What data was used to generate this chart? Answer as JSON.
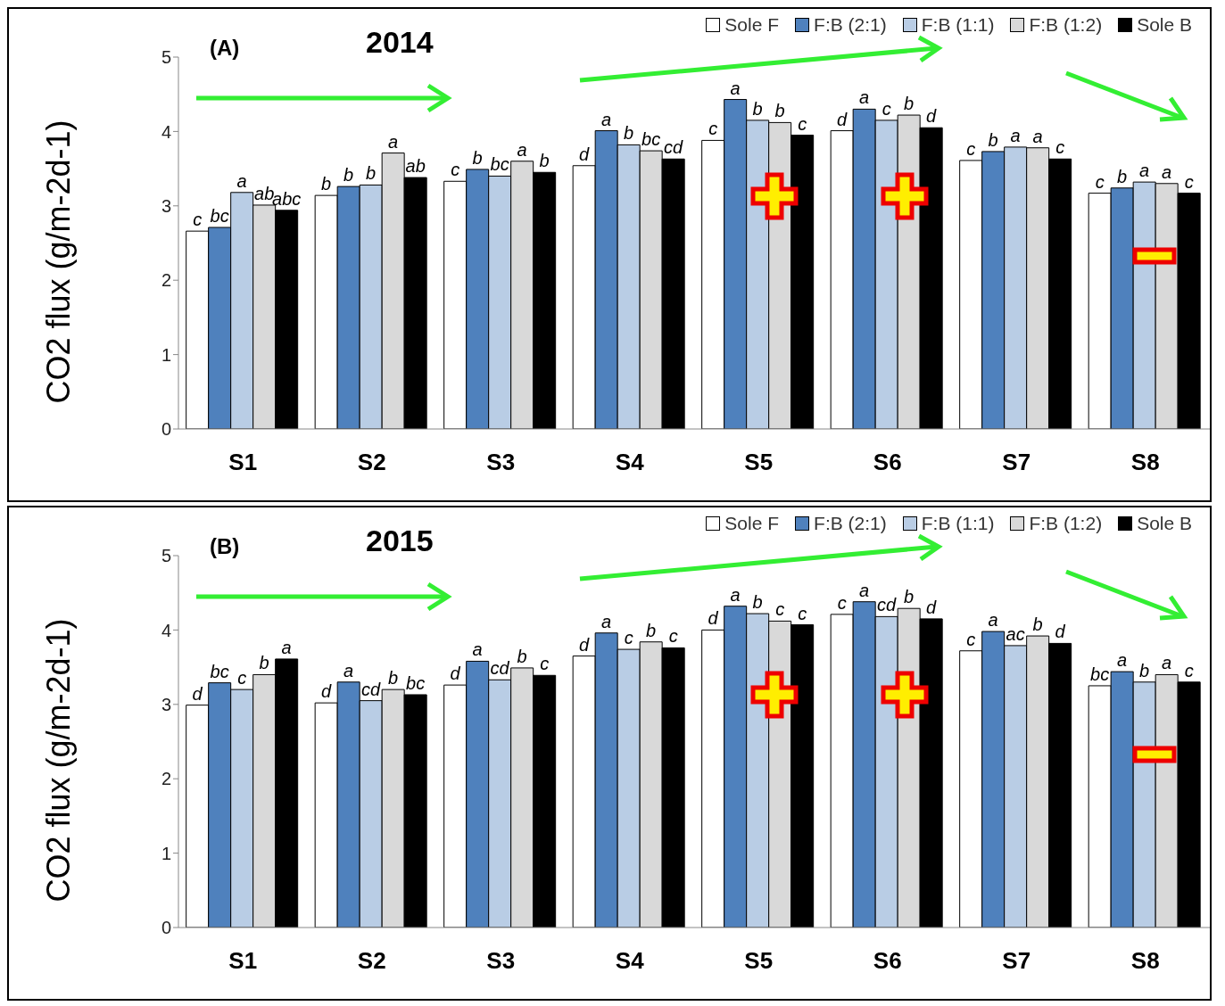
{
  "chart_data": [
    {
      "type": "bar",
      "title": "2014",
      "ylabel": "CO2 flux (g/m-2d-1)",
      "annotations": [
        "(A)"
      ],
      "categories": [
        "S1",
        "S2",
        "S3",
        "S4",
        "S5",
        "S6",
        "S7",
        "S8"
      ],
      "ylim": [
        0,
        5
      ],
      "yticks": [
        0,
        1,
        2,
        3,
        4,
        5
      ],
      "legend": "top right",
      "grid": false,
      "series": [
        {
          "name": "Sole F",
          "color": "#ffffff",
          "values": [
            2.66,
            3.14,
            3.33,
            3.54,
            3.88,
            4.01,
            3.61,
            3.17
          ],
          "value_labels": [
            "c",
            "b",
            "c",
            "d",
            "c",
            "d",
            "c",
            "c"
          ]
        },
        {
          "name": "F:B (2:1)",
          "color": "#4f81bd",
          "values": [
            2.71,
            3.26,
            3.49,
            4.01,
            4.43,
            4.3,
            3.73,
            3.24
          ],
          "value_labels": [
            "bc",
            "b",
            "b",
            "a",
            "a",
            "a",
            "b",
            "b"
          ]
        },
        {
          "name": "F:B (1:1)",
          "color": "#b9cde5",
          "values": [
            3.18,
            3.28,
            3.4,
            3.82,
            4.15,
            4.15,
            3.79,
            3.32
          ],
          "value_labels": [
            "a",
            "b",
            "bc",
            "b",
            "b",
            "c",
            "a",
            "a"
          ]
        },
        {
          "name": "F:B (1:2)",
          "color": "#d9d9d9",
          "values": [
            3.01,
            3.71,
            3.6,
            3.74,
            4.12,
            4.22,
            3.78,
            3.3
          ],
          "value_labels": [
            "ab",
            "a",
            "a",
            "bc",
            "b",
            "b",
            "a",
            "a"
          ]
        },
        {
          "name": "Sole B",
          "color": "#000000",
          "values": [
            2.94,
            3.38,
            3.45,
            3.63,
            3.95,
            4.05,
            3.63,
            3.17
          ],
          "value_labels": [
            "abc",
            "ab",
            "b",
            "cd",
            "c",
            "d",
            "c",
            "c"
          ]
        }
      ]
    },
    {
      "type": "bar",
      "title": "2015",
      "ylabel": "CO2 flux (g/m-2d-1)",
      "annotations": [
        "(B)"
      ],
      "categories": [
        "S1",
        "S2",
        "S3",
        "S4",
        "S5",
        "S6",
        "S7",
        "S8"
      ],
      "ylim": [
        0,
        5
      ],
      "yticks": [
        0,
        1,
        2,
        3,
        4,
        5
      ],
      "legend": "top right",
      "grid": false,
      "series": [
        {
          "name": "Sole F",
          "color": "#ffffff",
          "values": [
            2.99,
            3.02,
            3.26,
            3.65,
            4.0,
            4.21,
            3.72,
            3.25
          ],
          "value_labels": [
            "d",
            "d",
            "d",
            "d",
            "d",
            "c",
            "c",
            "bc"
          ]
        },
        {
          "name": "F:B (2:1)",
          "color": "#4f81bd",
          "values": [
            3.29,
            3.3,
            3.58,
            3.96,
            4.32,
            4.38,
            3.98,
            3.44
          ],
          "value_labels": [
            "bc",
            "a",
            "a",
            "a",
            "a",
            "a",
            "a",
            "a"
          ]
        },
        {
          "name": "F:B (1:1)",
          "color": "#b9cde5",
          "values": [
            3.2,
            3.05,
            3.33,
            3.74,
            4.22,
            4.18,
            3.79,
            3.3
          ],
          "value_labels": [
            "c",
            "cd",
            "cd",
            "c",
            "b",
            "cd",
            "ac",
            "b"
          ]
        },
        {
          "name": "F:B (1:2)",
          "color": "#d9d9d9",
          "values": [
            3.4,
            3.2,
            3.49,
            3.84,
            4.12,
            4.29,
            3.92,
            3.4
          ],
          "value_labels": [
            "b",
            "b",
            "b",
            "b",
            "c",
            "b",
            "b",
            "a"
          ]
        },
        {
          "name": "Sole B",
          "color": "#000000",
          "values": [
            3.61,
            3.13,
            3.39,
            3.76,
            4.07,
            4.15,
            3.82,
            3.3
          ],
          "value_labels": [
            "a",
            "bc",
            "c",
            "c",
            "c",
            "d",
            "d",
            "c"
          ]
        }
      ]
    }
  ]
}
